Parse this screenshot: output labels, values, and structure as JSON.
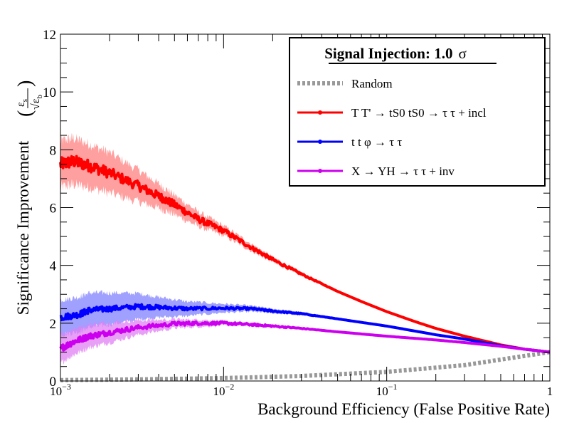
{
  "chart_data": {
    "type": "line",
    "xscale": "log",
    "xlim": [
      0.001,
      1
    ],
    "ylim": [
      0,
      12
    ],
    "xlabel": "Background Efficiency (False Positive Rate)",
    "ylabel": "Significance Improvement",
    "ylabel_frac_num": "ε",
    "ylabel_frac_num_sub": "s",
    "ylabel_frac_den": "√ε",
    "ylabel_frac_den_sub": "b",
    "x_ticks": [
      {
        "base": "10",
        "exp": "−3",
        "value": 0.001
      },
      {
        "base": "10",
        "exp": "−2",
        "value": 0.01
      },
      {
        "base": "10",
        "exp": "−1",
        "value": 0.1
      },
      {
        "base": "1",
        "exp": "",
        "value": 1
      }
    ],
    "y_ticks": [
      "0",
      "2",
      "4",
      "6",
      "8",
      "10",
      "12"
    ],
    "legend_title": "Signal Injection: 1.0",
    "legend_title_sigma": "σ",
    "series": [
      {
        "name": "Random",
        "color": "#999999",
        "style": "dotted",
        "points": [
          [
            0.001,
            0.032
          ],
          [
            0.003,
            0.055
          ],
          [
            0.01,
            0.1
          ],
          [
            0.03,
            0.173
          ],
          [
            0.1,
            0.316
          ],
          [
            0.3,
            0.548
          ],
          [
            1,
            1.0
          ]
        ]
      },
      {
        "name": "T T' → tS0 tS0 → τ τ + incl",
        "color": "#ff0000",
        "band_color": "#ff8080",
        "points": [
          [
            0.001,
            7.5
          ],
          [
            0.0012,
            7.6
          ],
          [
            0.0015,
            7.45
          ],
          [
            0.002,
            7.2
          ],
          [
            0.003,
            6.75
          ],
          [
            0.004,
            6.4
          ],
          [
            0.005,
            6.1
          ],
          [
            0.007,
            5.6
          ],
          [
            0.01,
            5.2
          ],
          [
            0.015,
            4.6
          ],
          [
            0.02,
            4.2
          ],
          [
            0.03,
            3.7
          ],
          [
            0.05,
            3.1
          ],
          [
            0.07,
            2.75
          ],
          [
            0.1,
            2.4
          ],
          [
            0.15,
            2.05
          ],
          [
            0.2,
            1.82
          ],
          [
            0.3,
            1.55
          ],
          [
            0.5,
            1.25
          ],
          [
            0.7,
            1.1
          ],
          [
            1,
            1.0
          ]
        ],
        "band": [
          0.8,
          0.8,
          0.75,
          0.7,
          0.55,
          0.42,
          0.34,
          0.25,
          0.17,
          0.12,
          0.09,
          0.07,
          0.05,
          0.04,
          0.03,
          0.02,
          0.02,
          0.01,
          0.01,
          0.01,
          0.0
        ]
      },
      {
        "name": "t t φ → τ τ",
        "color": "#0000ff",
        "band_color": "#8080ff",
        "points": [
          [
            0.001,
            2.2
          ],
          [
            0.0013,
            2.3
          ],
          [
            0.0015,
            2.45
          ],
          [
            0.002,
            2.5
          ],
          [
            0.003,
            2.58
          ],
          [
            0.004,
            2.55
          ],
          [
            0.006,
            2.5
          ],
          [
            0.01,
            2.52
          ],
          [
            0.015,
            2.5
          ],
          [
            0.02,
            2.42
          ],
          [
            0.03,
            2.33
          ],
          [
            0.05,
            2.15
          ],
          [
            0.1,
            1.9
          ],
          [
            0.2,
            1.6
          ],
          [
            0.3,
            1.45
          ],
          [
            0.5,
            1.22
          ],
          [
            0.7,
            1.1
          ],
          [
            1,
            1.0
          ]
        ],
        "band": [
          0.6,
          0.6,
          0.6,
          0.55,
          0.45,
          0.35,
          0.25,
          0.15,
          0.1,
          0.08,
          0.06,
          0.04,
          0.03,
          0.02,
          0.02,
          0.01,
          0.01,
          0.0
        ]
      },
      {
        "name": "X → YH → τ τ + inv",
        "color": "#cc00ee",
        "band_color": "#e080f4",
        "points": [
          [
            0.001,
            1.12
          ],
          [
            0.0012,
            1.35
          ],
          [
            0.0015,
            1.55
          ],
          [
            0.002,
            1.68
          ],
          [
            0.003,
            1.85
          ],
          [
            0.005,
            1.98
          ],
          [
            0.007,
            2.0
          ],
          [
            0.01,
            2.0
          ],
          [
            0.015,
            1.95
          ],
          [
            0.02,
            1.9
          ],
          [
            0.03,
            1.82
          ],
          [
            0.05,
            1.7
          ],
          [
            0.1,
            1.55
          ],
          [
            0.2,
            1.42
          ],
          [
            0.3,
            1.33
          ],
          [
            0.5,
            1.2
          ],
          [
            0.7,
            1.1
          ],
          [
            1,
            1.0
          ]
        ],
        "band": [
          0.5,
          0.45,
          0.4,
          0.35,
          0.25,
          0.15,
          0.12,
          0.08,
          0.06,
          0.04,
          0.03,
          0.02,
          0.02,
          0.01,
          0.01,
          0.01,
          0.0,
          0.0
        ]
      }
    ]
  }
}
